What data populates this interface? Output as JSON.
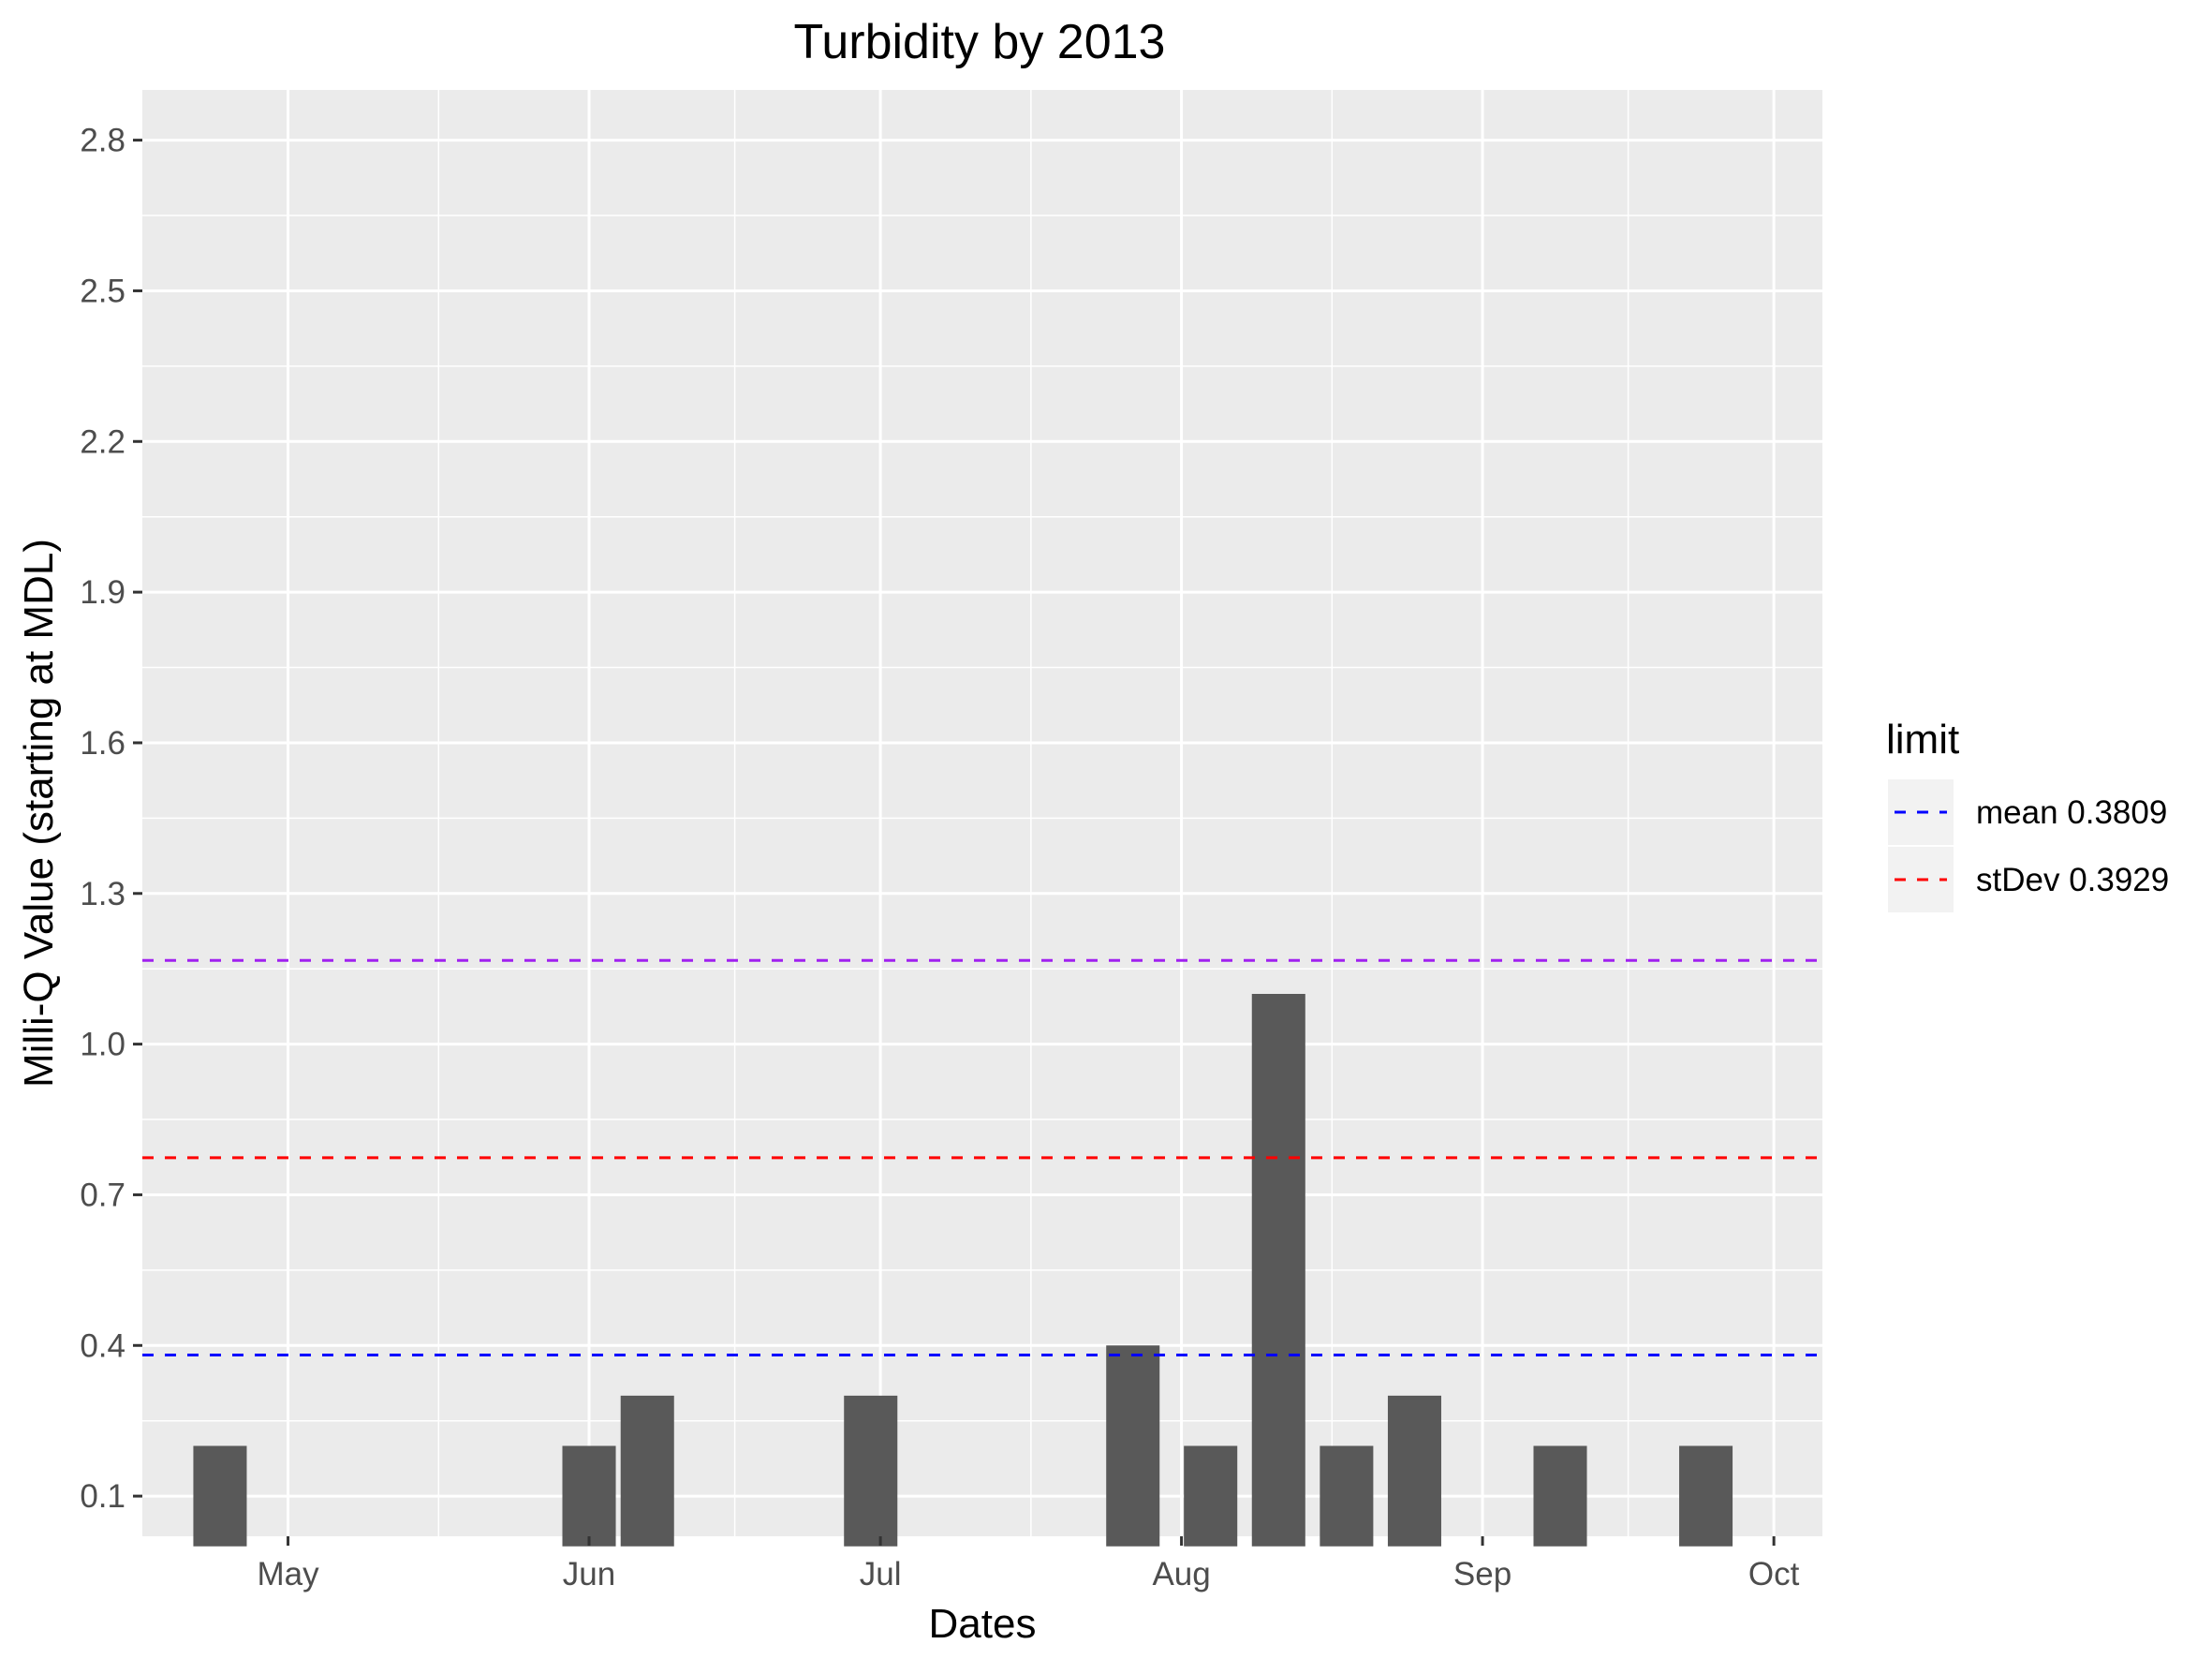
{
  "chart_data": {
    "type": "bar",
    "title": "Turbidity by 2013",
    "xlabel": "Dates",
    "ylabel": "Milli-Q Value (starting at MDL)",
    "x_axis_type": "date",
    "x_ticks": [
      {
        "label": "May",
        "date": "2013-05-01"
      },
      {
        "label": "Jun",
        "date": "2013-06-01"
      },
      {
        "label": "Jul",
        "date": "2013-07-01"
      },
      {
        "label": "Aug",
        "date": "2013-08-01"
      },
      {
        "label": "Sep",
        "date": "2013-09-01"
      },
      {
        "label": "Oct",
        "date": "2013-10-01"
      }
    ],
    "xlim": [
      "2013-04-16",
      "2013-10-06"
    ],
    "ylim": [
      0.02,
      2.9
    ],
    "bar_baseline": 0.0,
    "y_ticks": [
      0.1,
      0.4,
      0.7,
      1.0,
      1.3,
      1.6,
      1.9,
      2.2,
      2.5,
      2.8
    ],
    "y_tick_labels": [
      "0.1",
      "0.4",
      "0.7",
      "1.0",
      "1.3",
      "1.6",
      "1.9",
      "2.2",
      "2.5",
      "2.8"
    ],
    "grid": true,
    "bar_color": "#595959",
    "panel_background": "#ebebeb",
    "bars": [
      {
        "date": "2013-04-24",
        "value": 0.2
      },
      {
        "date": "2013-06-01",
        "value": 0.2
      },
      {
        "date": "2013-06-07",
        "value": 0.3
      },
      {
        "date": "2013-06-30",
        "value": 0.3
      },
      {
        "date": "2013-07-27",
        "value": 0.4
      },
      {
        "date": "2013-08-04",
        "value": 0.2
      },
      {
        "date": "2013-08-11",
        "value": 1.1
      },
      {
        "date": "2013-08-18",
        "value": 0.2
      },
      {
        "date": "2013-08-25",
        "value": 0.3
      },
      {
        "date": "2013-09-09",
        "value": 0.2
      },
      {
        "date": "2013-09-24",
        "value": 0.2
      }
    ],
    "reference_lines": [
      {
        "name": "mean 0.3809",
        "value": 0.3809,
        "color": "#0000ff",
        "in_legend": true
      },
      {
        "name": "stDev 0.3929",
        "value": 0.7738,
        "color": "#ff0000",
        "in_legend": true
      },
      {
        "name": "",
        "value": 1.1667,
        "color": "#a020f0",
        "in_legend": false
      }
    ],
    "legend": {
      "title": "limit",
      "placement": "right",
      "entries": [
        "mean 0.3809",
        "stDev 0.3929"
      ]
    }
  }
}
